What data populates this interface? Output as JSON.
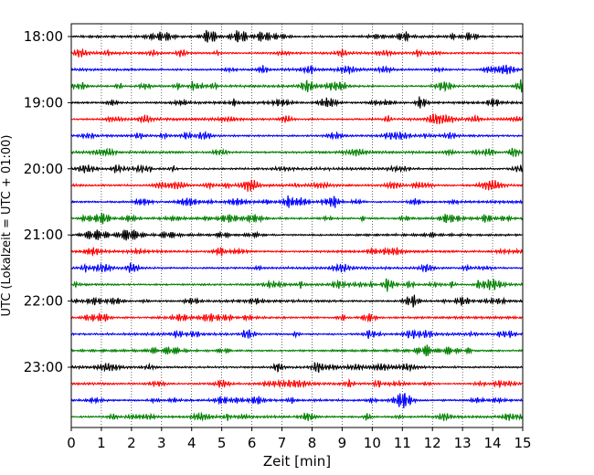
{
  "chart_data": {
    "type": "line",
    "title": "",
    "xlabel": "Zeit  [min]",
    "ylabel": "UTC (Lokalzeit = UTC + 01:00)",
    "xlim": [
      0,
      15
    ],
    "x_ticks": [
      "0",
      "1",
      "2",
      "3",
      "4",
      "5",
      "6",
      "7",
      "8",
      "9",
      "10",
      "11",
      "12",
      "13",
      "14",
      "15"
    ],
    "y_ticks": [
      "18:00",
      "19:00",
      "20:00",
      "21:00",
      "22:00",
      "23:00"
    ],
    "grid": "vertical-dotted",
    "legend": "none",
    "trace_colors": [
      "#000000",
      "#ff0000",
      "#0000ff",
      "#008000"
    ],
    "traces": [
      {
        "start": "18:00",
        "color": "#000000"
      },
      {
        "start": "18:15",
        "color": "#ff0000"
      },
      {
        "start": "18:30",
        "color": "#0000ff"
      },
      {
        "start": "18:45",
        "color": "#008000"
      },
      {
        "start": "19:00",
        "color": "#000000"
      },
      {
        "start": "19:15",
        "color": "#ff0000"
      },
      {
        "start": "19:30",
        "color": "#0000ff"
      },
      {
        "start": "19:45",
        "color": "#008000"
      },
      {
        "start": "20:00",
        "color": "#000000"
      },
      {
        "start": "20:15",
        "color": "#ff0000"
      },
      {
        "start": "20:30",
        "color": "#0000ff"
      },
      {
        "start": "20:45",
        "color": "#008000"
      },
      {
        "start": "21:00",
        "color": "#000000"
      },
      {
        "start": "21:15",
        "color": "#ff0000"
      },
      {
        "start": "21:30",
        "color": "#0000ff"
      },
      {
        "start": "21:45",
        "color": "#008000"
      },
      {
        "start": "22:00",
        "color": "#000000"
      },
      {
        "start": "22:15",
        "color": "#ff0000"
      },
      {
        "start": "22:30",
        "color": "#0000ff"
      },
      {
        "start": "22:45",
        "color": "#008000"
      },
      {
        "start": "23:00",
        "color": "#000000"
      },
      {
        "start": "23:15",
        "color": "#ff0000"
      },
      {
        "start": "23:30",
        "color": "#0000ff"
      },
      {
        "start": "23:45",
        "color": "#008000"
      }
    ]
  }
}
